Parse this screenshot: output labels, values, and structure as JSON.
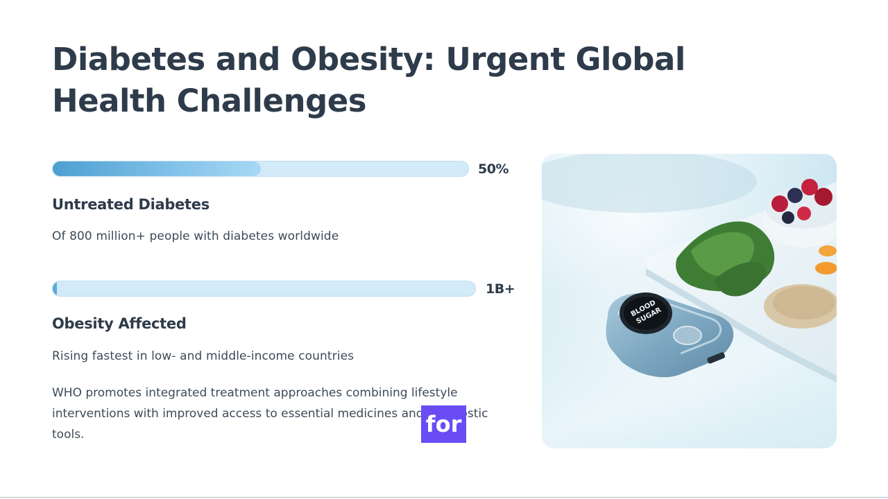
{
  "slide": {
    "title": "Diabetes and Obesity: Urgent Global Health Challenges"
  },
  "stats": [
    {
      "value_label": "50%",
      "fill_percent": 50,
      "heading": "Untreated Diabetes",
      "description": "Of 800 million+ people with diabetes worldwide"
    },
    {
      "value_label": "1B+",
      "fill_percent": 1,
      "heading": "Obesity Affected",
      "description": "Rising fastest in low- and middle-income countries"
    }
  ],
  "summary": "WHO promotes integrated treatment approaches combining lifestyle interventions with improved access to essential medicines and diagnostic tools.",
  "caption_overlay": "for",
  "image": {
    "device_label": "BLOOD SUGAR"
  },
  "colors": {
    "heading": "#2e3b4a",
    "bar_track": "#d3eaf8",
    "bar_fill": "#5aaad8",
    "caption_bg": "#6a4cf5"
  }
}
